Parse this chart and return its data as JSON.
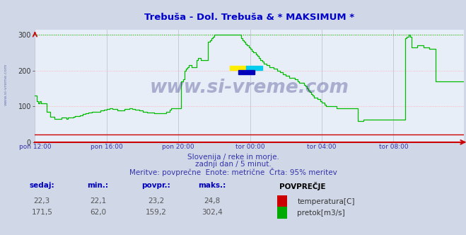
{
  "title": "Trebuša - Dol. Trebuša & * MAKSIMUM *",
  "title_color": "#0000cc",
  "bg_color": "#d0d8e8",
  "plot_bg_color": "#e8eef8",
  "grid_color_h": "#ffaaaa",
  "grid_color_v": "#bbbbcc",
  "max_line_color": "#00cc00",
  "x_labels": [
    "pon 12:00",
    "pon 16:00",
    "pon 20:00",
    "tor 00:00",
    "tor 04:00",
    "tor 08:00"
  ],
  "y_ticks": [
    0,
    100,
    200,
    300
  ],
  "ylim": [
    0,
    315
  ],
  "footer_line1": "Slovenija / reke in morje.",
  "footer_line2": "zadnji dan / 5 minut.",
  "footer_line3": "Meritve: povprečne  Enote: metrične  Črta: 95% meritev",
  "footer_color": "#3333aa",
  "watermark": "www.si-vreme.com",
  "watermark_color": "#1a1a6e",
  "table_headers": [
    "sedaj:",
    "min.:",
    "povpr.:",
    "maks.:",
    "POVPREČJE"
  ],
  "table_row1": [
    "22,3",
    "22,1",
    "23,2",
    "24,8"
  ],
  "table_row2": [
    "171,5",
    "62,0",
    "159,2",
    "302,4"
  ],
  "legend_temp_color": "#cc0000",
  "legend_flow_color": "#00aa00",
  "legend_temp_label": "temperatura[C]",
  "legend_flow_label": "pretok[m3/s]",
  "temp_line_color": "#cc0000",
  "flow_line_color": "#00bb00",
  "num_points": 288,
  "flow_data": [
    130,
    115,
    108,
    115,
    108,
    108,
    108,
    108,
    85,
    85,
    70,
    70,
    70,
    65,
    65,
    65,
    65,
    65,
    68,
    68,
    68,
    65,
    68,
    68,
    68,
    68,
    70,
    72,
    72,
    72,
    75,
    75,
    78,
    78,
    80,
    80,
    82,
    82,
    85,
    85,
    85,
    85,
    85,
    85,
    88,
    88,
    90,
    90,
    92,
    92,
    95,
    95,
    92,
    92,
    92,
    88,
    88,
    88,
    88,
    88,
    92,
    92,
    92,
    95,
    95,
    92,
    92,
    90,
    90,
    90,
    88,
    88,
    85,
    85,
    85,
    82,
    82,
    82,
    82,
    82,
    80,
    80,
    80,
    80,
    80,
    80,
    80,
    80,
    85,
    85,
    90,
    95,
    95,
    95,
    95,
    95,
    95,
    95,
    170,
    175,
    200,
    205,
    210,
    215,
    215,
    210,
    210,
    210,
    230,
    235,
    235,
    230,
    230,
    230,
    230,
    230,
    280,
    285,
    290,
    295,
    300,
    300,
    300,
    300,
    300,
    300,
    300,
    300,
    300,
    300,
    300,
    300,
    300,
    300,
    300,
    300,
    300,
    300,
    290,
    285,
    280,
    275,
    270,
    265,
    260,
    255,
    250,
    250,
    245,
    240,
    235,
    230,
    225,
    220,
    220,
    215,
    215,
    210,
    210,
    210,
    205,
    205,
    200,
    200,
    195,
    195,
    190,
    190,
    185,
    185,
    180,
    180,
    180,
    180,
    175,
    175,
    170,
    165,
    165,
    165,
    160,
    155,
    150,
    145,
    140,
    135,
    130,
    125,
    125,
    120,
    120,
    115,
    110,
    110,
    105,
    100,
    100,
    100,
    100,
    100,
    100,
    100,
    95,
    95,
    95,
    95,
    95,
    95,
    95,
    95,
    95,
    95,
    95,
    95,
    95,
    95,
    60,
    60,
    60,
    60,
    62,
    62,
    62,
    62,
    62,
    62,
    62,
    62,
    62,
    62,
    62,
    62,
    62,
    62,
    62,
    62,
    62,
    62,
    62,
    62,
    62,
    62,
    62,
    62,
    62,
    62,
    62,
    62,
    290,
    295,
    300,
    295,
    265,
    265,
    265,
    265,
    270,
    270,
    270,
    270,
    265,
    265,
    265,
    265,
    260,
    260,
    260,
    260,
    170,
    170,
    170,
    170,
    170,
    170,
    170,
    170,
    170,
    170,
    170,
    170,
    170,
    170,
    170,
    170,
    170,
    170,
    170,
    170
  ],
  "temp_data_value": 22.3
}
